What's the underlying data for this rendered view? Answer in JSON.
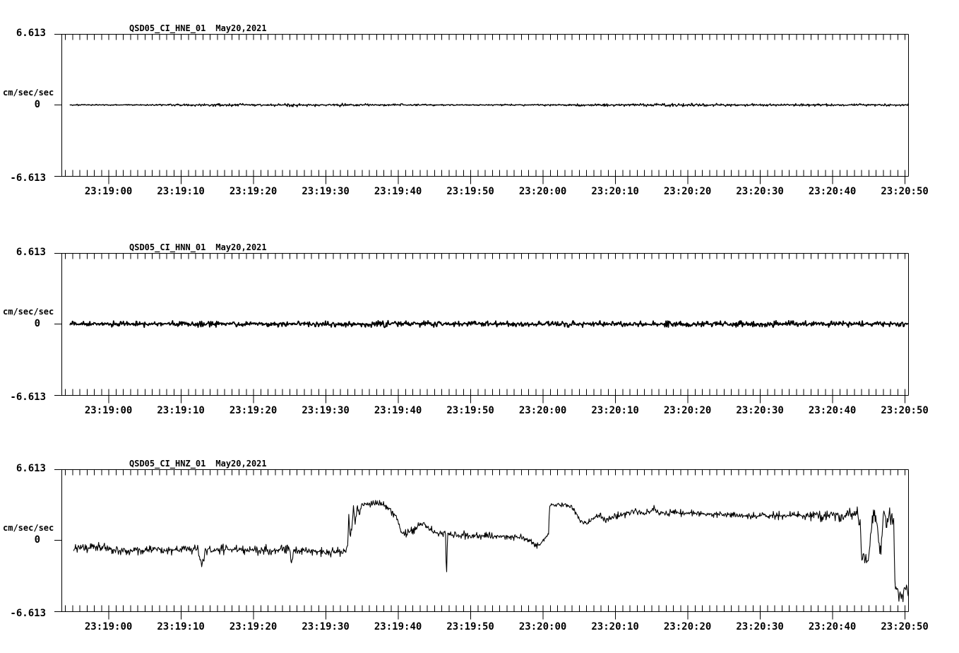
{
  "page": {
    "background": "#ffffff",
    "trace_color": "#000000"
  },
  "chart_data": [
    {
      "type": "line",
      "id": "HNE",
      "title_id": "QSD05_CI_HNE_01",
      "title_date": "May20,2021",
      "ylabel": "cm/sec/sec",
      "ylim": [
        -6.613,
        6.613
      ],
      "y_tick_labels": [
        "6.613",
        "0",
        "-6.613"
      ],
      "x_tick_labels": [
        "23:19:00",
        "23:19:10",
        "23:19:20",
        "23:19:30",
        "23:19:40",
        "23:19:50",
        "23:20:00",
        "23:20:10",
        "23:20:20",
        "23:20:30",
        "23:20:40",
        "23:20:50"
      ],
      "x_minor_tick_seconds": 1,
      "x_major_tick_seconds": 10,
      "legend": "none",
      "grid": false,
      "series": {
        "description": "flat quiet trace at zero with faint noise bursts; t = seconds after 23:18:00",
        "t_start": 54.7,
        "t_end": 170.5,
        "seed": 3,
        "baseline_keypoints": [
          [
            54.7,
            0
          ],
          [
            170.5,
            0
          ]
        ],
        "noise_amp_keypoints": [
          [
            54.7,
            0.025
          ],
          [
            68,
            0.03
          ],
          [
            74,
            0.06
          ],
          [
            80,
            0.05
          ],
          [
            86,
            0.065
          ],
          [
            92,
            0.07
          ],
          [
            97,
            0.05
          ],
          [
            102,
            0.035
          ],
          [
            108,
            0.03
          ],
          [
            114,
            0.03
          ],
          [
            120,
            0.04
          ],
          [
            126,
            0.06
          ],
          [
            132,
            0.05
          ],
          [
            138,
            0.065
          ],
          [
            144,
            0.06
          ],
          [
            150,
            0.055
          ],
          [
            156,
            0.06
          ],
          [
            162,
            0.04
          ],
          [
            166,
            0.05
          ],
          [
            170.5,
            0.035
          ]
        ]
      }
    },
    {
      "type": "line",
      "id": "HNN",
      "title_id": "QSD05_CI_HNN_01",
      "title_date": "May20,2021",
      "ylabel": "cm/sec/sec",
      "ylim": [
        -6.613,
        6.613
      ],
      "y_tick_labels": [
        "6.613",
        "0",
        "-6.613"
      ],
      "x_tick_labels": [
        "23:19:00",
        "23:19:10",
        "23:19:20",
        "23:19:30",
        "23:19:40",
        "23:19:50",
        "23:20:00",
        "23:20:10",
        "23:20:20",
        "23:20:30",
        "23:20:40",
        "23:20:50"
      ],
      "x_minor_tick_seconds": 1,
      "x_major_tick_seconds": 10,
      "legend": "none",
      "grid": false,
      "series": {
        "description": "flat trace at zero, uniformly thicker noise band than HNE; t = seconds after 23:18:00",
        "t_start": 54.7,
        "t_end": 170.5,
        "seed": 7,
        "baseline_keypoints": [
          [
            54.7,
            0
          ],
          [
            170.5,
            0
          ]
        ],
        "noise_amp_keypoints": [
          [
            54.7,
            0.1
          ],
          [
            65,
            0.12
          ],
          [
            80,
            0.11
          ],
          [
            95,
            0.13
          ],
          [
            110,
            0.11
          ],
          [
            125,
            0.12
          ],
          [
            140,
            0.11
          ],
          [
            155,
            0.12
          ],
          [
            170.5,
            0.11
          ]
        ]
      }
    },
    {
      "type": "line",
      "id": "HNZ",
      "title_id": "QSD05_CI_HNZ_01",
      "title_date": "May20,2021",
      "ylabel": "cm/sec/sec",
      "ylim": [
        -6.613,
        6.613
      ],
      "y_tick_labels": [
        "6.613",
        "0",
        "-6.613"
      ],
      "x_tick_labels": [
        "23:19:00",
        "23:19:10",
        "23:19:20",
        "23:19:30",
        "23:19:40",
        "23:19:50",
        "23:20:00",
        "23:20:10",
        "23:20:20",
        "23:20:30",
        "23:20:40",
        "23:20:50"
      ],
      "x_minor_tick_seconds": 1,
      "x_major_tick_seconds": 10,
      "legend": "none",
      "grid": false,
      "series": {
        "description": "noisy trace near -0.9 until 23:19:33 step to +3.3 plateau, decay, bump, -3.7 spike at 23:19:46, ~+0.4 lull, second step at 23:20:01 to +3.3 settling near +2.3 until dips at 23:20:44-47 and final drop to about -5 at 23:20:49; t = seconds after 23:18:00",
        "t_start": 55.2,
        "t_end": 170.5,
        "seed": 11,
        "baseline_keypoints": [
          [
            55.2,
            -0.8
          ],
          [
            56,
            -0.6
          ],
          [
            57.5,
            -0.75
          ],
          [
            59,
            -0.65
          ],
          [
            60.5,
            -0.9
          ],
          [
            62,
            -1.0
          ],
          [
            63.5,
            -0.85
          ],
          [
            65,
            -0.95
          ],
          [
            66.5,
            -0.8
          ],
          [
            68,
            -0.9
          ],
          [
            69.5,
            -0.85
          ],
          [
            71,
            -0.8
          ],
          [
            72.3,
            -0.9
          ],
          [
            72.9,
            -2.3
          ],
          [
            73.4,
            -0.85
          ],
          [
            75,
            -0.9
          ],
          [
            76.5,
            -0.8
          ],
          [
            78,
            -0.9
          ],
          [
            79.5,
            -0.85
          ],
          [
            81,
            -0.95
          ],
          [
            82.5,
            -0.85
          ],
          [
            84,
            -0.9
          ],
          [
            85.1,
            -0.95
          ],
          [
            85.3,
            -2.2
          ],
          [
            85.6,
            -0.95
          ],
          [
            87,
            -1.0
          ],
          [
            88.5,
            -0.95
          ],
          [
            90,
            -1.1
          ],
          [
            91.5,
            -1.05
          ],
          [
            92.7,
            -1.15
          ],
          [
            93.05,
            -0.4
          ],
          [
            93.2,
            2.1
          ],
          [
            93.4,
            0.3
          ],
          [
            93.65,
            1.3
          ],
          [
            93.85,
            3.1
          ],
          [
            94.1,
            1.5
          ],
          [
            94.4,
            3.2
          ],
          [
            94.65,
            2.5
          ],
          [
            94.9,
            3.3
          ],
          [
            95.4,
            3.4
          ],
          [
            96,
            3.35
          ],
          [
            96.6,
            3.4
          ],
          [
            97.2,
            3.35
          ],
          [
            97.8,
            3.3
          ],
          [
            98.4,
            3.15
          ],
          [
            99,
            2.8
          ],
          [
            99.6,
            2.3
          ],
          [
            100.1,
            1.5
          ],
          [
            100.5,
            0.8
          ],
          [
            100.9,
            0.45
          ],
          [
            101.5,
            0.7
          ],
          [
            102.2,
            1.0
          ],
          [
            102.8,
            1.3
          ],
          [
            103.5,
            1.55
          ],
          [
            104,
            1.2
          ],
          [
            104.6,
            0.9
          ],
          [
            105.2,
            0.75
          ],
          [
            106,
            0.65
          ],
          [
            106.4,
            0.6
          ],
          [
            106.55,
            0.85
          ],
          [
            106.7,
            -3.75
          ],
          [
            106.85,
            0.8
          ],
          [
            107.2,
            0.55
          ],
          [
            108,
            0.45
          ],
          [
            109,
            0.5
          ],
          [
            110,
            0.4
          ],
          [
            111.5,
            0.45
          ],
          [
            113,
            0.35
          ],
          [
            114.5,
            0.4
          ],
          [
            116,
            0.3
          ],
          [
            117.2,
            0.25
          ],
          [
            118,
            0.05
          ],
          [
            118.8,
            -0.35
          ],
          [
            119.3,
            -0.5
          ],
          [
            119.8,
            -0.25
          ],
          [
            120.3,
            0.2
          ],
          [
            120.8,
            0.5
          ],
          [
            120.95,
            3.2
          ],
          [
            121.4,
            3.3
          ],
          [
            122,
            3.35
          ],
          [
            122.6,
            3.3
          ],
          [
            123.2,
            3.35
          ],
          [
            123.8,
            3.2
          ],
          [
            124.4,
            2.8
          ],
          [
            125,
            2.0
          ],
          [
            125.5,
            1.65
          ],
          [
            126,
            1.55
          ],
          [
            126.5,
            1.7
          ],
          [
            127,
            2.0
          ],
          [
            127.6,
            2.3
          ],
          [
            128.2,
            2.1
          ],
          [
            128.8,
            1.95
          ],
          [
            129.4,
            2.05
          ],
          [
            130,
            2.2
          ],
          [
            130.8,
            2.35
          ],
          [
            131.6,
            2.5
          ],
          [
            132.4,
            2.65
          ],
          [
            133,
            2.75
          ],
          [
            133.6,
            2.55
          ],
          [
            134.2,
            2.45
          ],
          [
            134.8,
            2.65
          ],
          [
            135.4,
            2.9
          ],
          [
            136,
            2.7
          ],
          [
            136.8,
            2.5
          ],
          [
            137.6,
            2.55
          ],
          [
            138.4,
            2.6
          ],
          [
            139.2,
            2.5
          ],
          [
            140,
            2.55
          ],
          [
            141,
            2.45
          ],
          [
            142,
            2.5
          ],
          [
            143,
            2.4
          ],
          [
            144,
            2.45
          ],
          [
            145,
            2.35
          ],
          [
            146,
            2.4
          ],
          [
            147,
            2.3
          ],
          [
            148,
            2.35
          ],
          [
            149,
            2.25
          ],
          [
            150,
            2.3
          ],
          [
            151,
            2.25
          ],
          [
            152,
            2.3
          ],
          [
            153,
            2.25
          ],
          [
            154,
            2.35
          ],
          [
            155,
            2.25
          ],
          [
            156,
            2.3
          ],
          [
            157,
            2.25
          ],
          [
            158,
            2.35
          ],
          [
            159,
            2.3
          ],
          [
            160,
            2.4
          ],
          [
            161,
            2.45
          ],
          [
            162,
            2.4
          ],
          [
            163,
            2.45
          ],
          [
            163.6,
            2.35
          ],
          [
            163.85,
            1.2
          ],
          [
            164.05,
            -1.7
          ],
          [
            164.35,
            -1.95
          ],
          [
            164.65,
            -1.6
          ],
          [
            164.95,
            -1.9
          ],
          [
            165.2,
            -0.6
          ],
          [
            165.5,
            1.9
          ],
          [
            165.75,
            2.35
          ],
          [
            166.05,
            2.2
          ],
          [
            166.25,
            1.0
          ],
          [
            166.45,
            -0.4
          ],
          [
            166.65,
            -1.2
          ],
          [
            166.85,
            0.6
          ],
          [
            167.05,
            2.2
          ],
          [
            167.3,
            2.45
          ],
          [
            167.5,
            1.3
          ],
          [
            167.7,
            2.1
          ],
          [
            167.9,
            3.0
          ],
          [
            168.05,
            1.7
          ],
          [
            168.2,
            2.4
          ],
          [
            168.35,
            1.6
          ],
          [
            168.5,
            1.9
          ],
          [
            168.62,
            -3.9
          ],
          [
            168.8,
            -4.8
          ],
          [
            169,
            -4.4
          ],
          [
            169.2,
            -5.3
          ],
          [
            169.4,
            -4.7
          ],
          [
            169.6,
            -5.7
          ],
          [
            169.8,
            -5.0
          ],
          [
            170,
            -4.4
          ],
          [
            170.15,
            -4.9
          ],
          [
            170.3,
            -3.9
          ],
          [
            170.4,
            -4.6
          ],
          [
            170.5,
            -5.2
          ]
        ],
        "noise_amp_keypoints": [
          [
            55.2,
            0.2
          ],
          [
            92.5,
            0.2
          ],
          [
            94,
            0.12
          ],
          [
            99,
            0.15
          ],
          [
            101,
            0.2
          ],
          [
            106,
            0.16
          ],
          [
            112,
            0.15
          ],
          [
            119,
            0.12
          ],
          [
            121,
            0.1
          ],
          [
            124,
            0.12
          ],
          [
            128,
            0.15
          ],
          [
            134,
            0.15
          ],
          [
            140,
            0.14
          ],
          [
            146,
            0.15
          ],
          [
            152,
            0.16
          ],
          [
            156,
            0.2
          ],
          [
            158,
            0.28
          ],
          [
            161,
            0.3
          ],
          [
            163.5,
            0.3
          ],
          [
            165,
            0.25
          ],
          [
            166,
            0.33
          ],
          [
            168,
            0.3
          ],
          [
            169,
            0.3
          ],
          [
            170.5,
            0.3
          ]
        ]
      }
    }
  ]
}
